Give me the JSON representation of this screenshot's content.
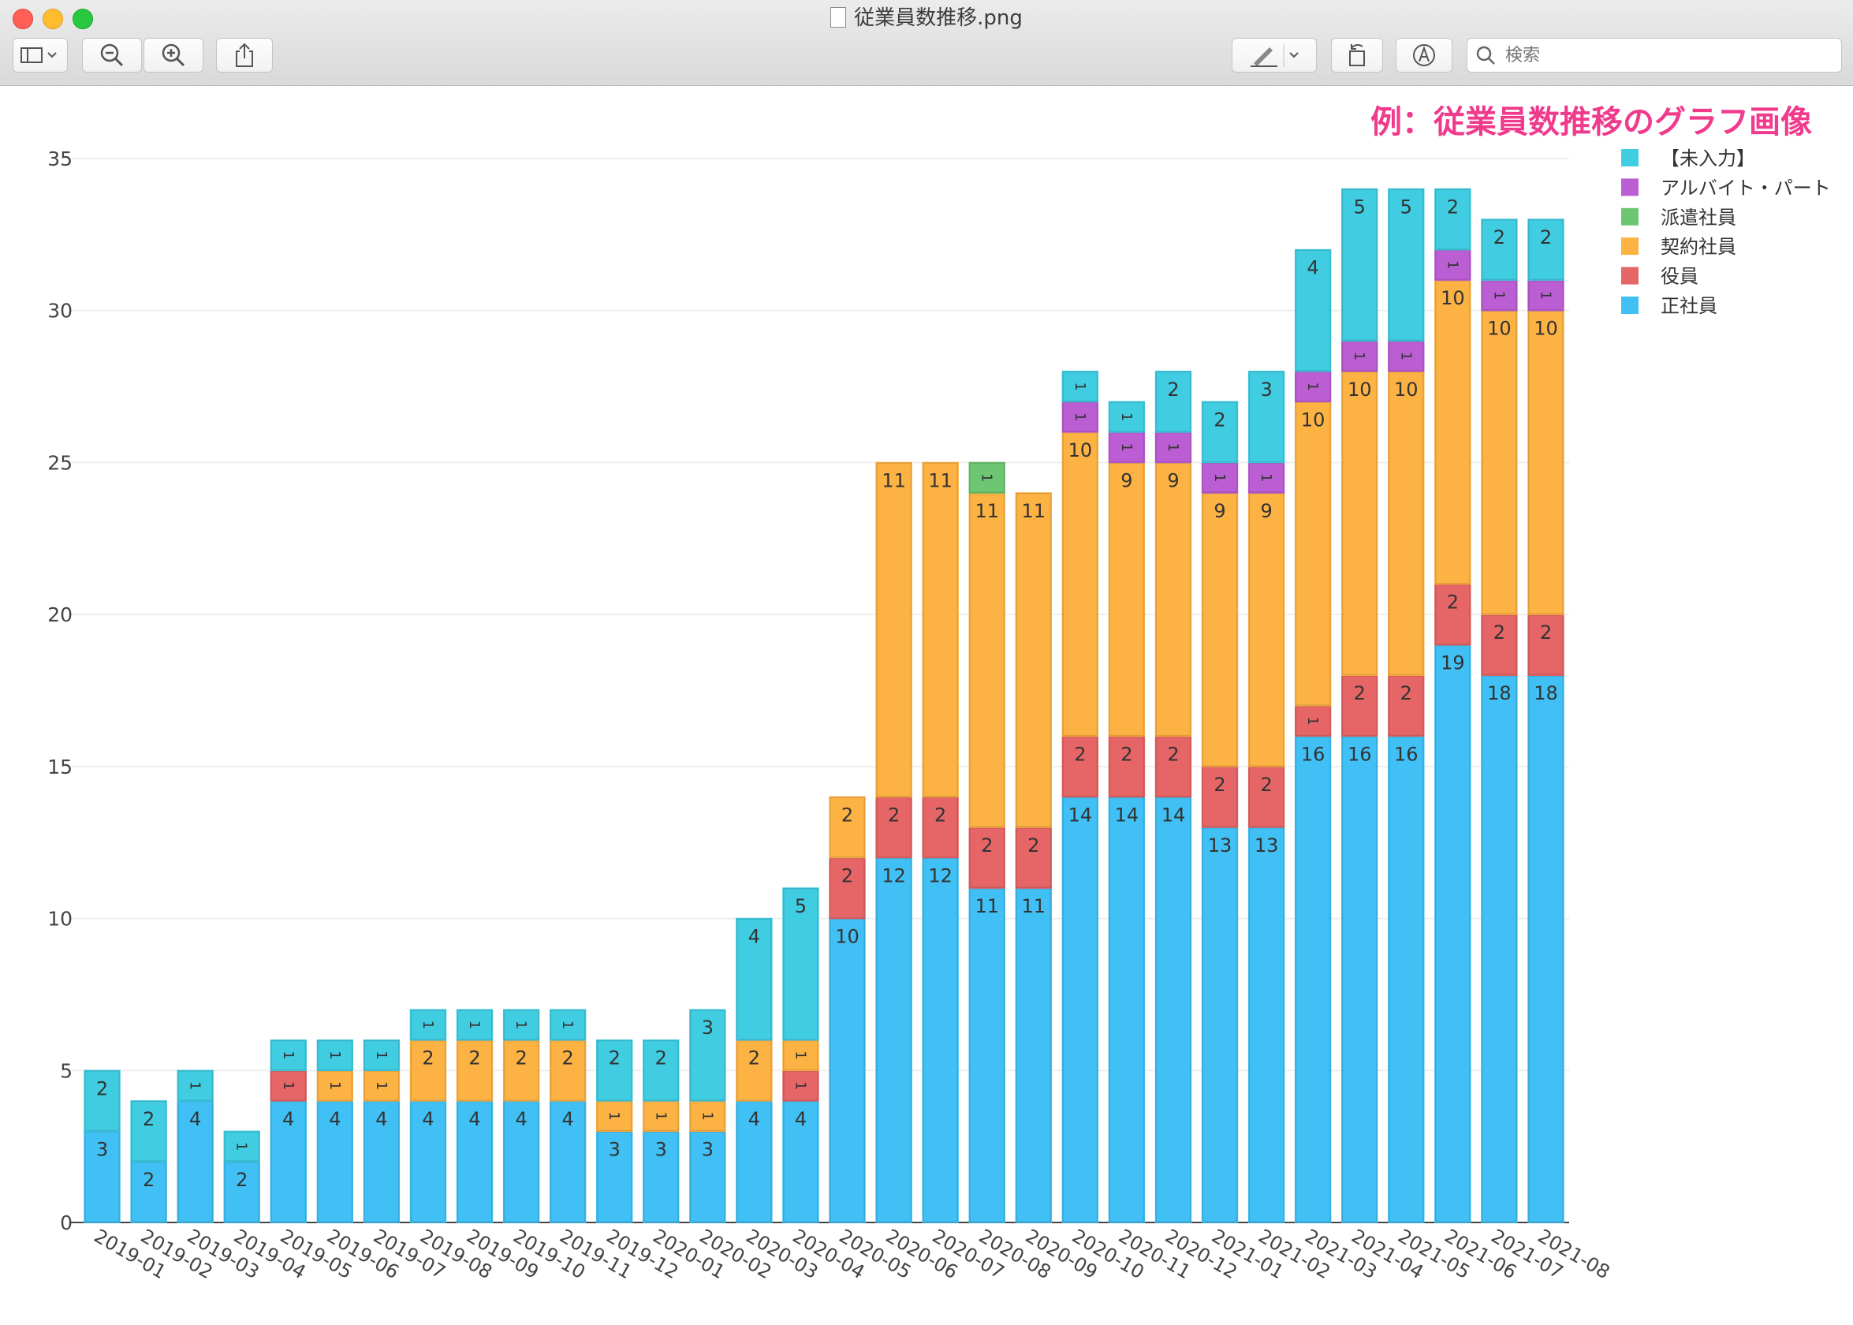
{
  "window": {
    "title": "従業員数推移.png",
    "search_placeholder": "検索"
  },
  "caption": "例：従業員数推移のグラフ画像",
  "colors": {
    "seishain": "#40c0f4",
    "yakuin": "#e66566",
    "keiyaku": "#fdb244",
    "haken": "#6dc672",
    "arubaito": "#bb5ed4",
    "minyuryoku": "#40cde2"
  },
  "chart_data": {
    "type": "bar",
    "stacked": true,
    "title": "",
    "xlabel": "",
    "ylabel": "",
    "ylim": [
      0,
      35
    ],
    "yticks": [
      0,
      5,
      10,
      15,
      20,
      25,
      30,
      35
    ],
    "grid": true,
    "legend_position": "top-right",
    "categories": [
      "2019-01",
      "2019-02",
      "2019-03",
      "2019-04",
      "2019-05",
      "2019-06",
      "2019-07",
      "2019-08",
      "2019-09",
      "2019-10",
      "2019-11",
      "2019-12",
      "2020-01",
      "2020-02",
      "2020-03",
      "2020-04",
      "2020-05",
      "2020-06",
      "2020-07",
      "2020-08",
      "2020-09",
      "2020-10",
      "2020-11",
      "2020-12",
      "2021-01",
      "2021-02",
      "2021-03",
      "2021-04",
      "2021-05",
      "2021-06",
      "2021-07",
      "2021-08"
    ],
    "series": [
      {
        "name": "正社員",
        "color": "#40c0f4",
        "values": [
          3,
          2,
          4,
          2,
          4,
          4,
          4,
          4,
          4,
          4,
          4,
          3,
          3,
          3,
          4,
          4,
          10,
          12,
          12,
          11,
          11,
          14,
          14,
          14,
          13,
          13,
          16,
          16,
          16,
          19,
          18,
          18
        ]
      },
      {
        "name": "役員",
        "color": "#e66566",
        "values": [
          0,
          0,
          0,
          0,
          1,
          0,
          0,
          0,
          0,
          0,
          0,
          0,
          0,
          0,
          0,
          1,
          2,
          2,
          2,
          2,
          2,
          2,
          2,
          2,
          2,
          2,
          1,
          2,
          2,
          2,
          2,
          2
        ]
      },
      {
        "name": "契約社員",
        "color": "#fdb244",
        "values": [
          0,
          0,
          0,
          0,
          0,
          1,
          1,
          2,
          2,
          2,
          2,
          1,
          1,
          1,
          2,
          1,
          2,
          11,
          11,
          11,
          11,
          10,
          9,
          9,
          9,
          9,
          10,
          10,
          10,
          10,
          10,
          10
        ]
      },
      {
        "name": "派遣社員",
        "color": "#6dc672",
        "values": [
          0,
          0,
          0,
          0,
          0,
          0,
          0,
          0,
          0,
          0,
          0,
          0,
          0,
          0,
          0,
          0,
          0,
          0,
          0,
          1,
          0,
          0,
          0,
          0,
          0,
          0,
          0,
          0,
          0,
          0,
          0,
          0
        ]
      },
      {
        "name": "アルバイト・パート",
        "color": "#bb5ed4",
        "values": [
          0,
          0,
          0,
          0,
          0,
          0,
          0,
          0,
          0,
          0,
          0,
          0,
          0,
          0,
          0,
          0,
          0,
          0,
          0,
          0,
          0,
          1,
          1,
          1,
          1,
          1,
          1,
          1,
          1,
          1,
          1,
          1
        ]
      },
      {
        "name": "【未入力】",
        "color": "#40cde2",
        "values": [
          2,
          2,
          1,
          1,
          1,
          1,
          1,
          1,
          1,
          1,
          1,
          2,
          2,
          3,
          4,
          5,
          0,
          0,
          0,
          0,
          0,
          1,
          1,
          2,
          2,
          3,
          4,
          5,
          5,
          2,
          2,
          2
        ]
      }
    ],
    "legend_order": [
      "【未入力】",
      "アルバイト・パート",
      "派遣社員",
      "契約社員",
      "役員",
      "正社員"
    ]
  }
}
